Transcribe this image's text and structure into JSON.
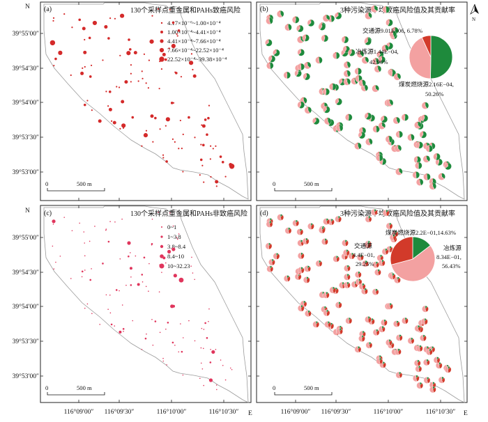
{
  "axes": {
    "lat_labels": [
      "39°55′00″",
      "39°54′30″",
      "39°54′00″",
      "39°53′30″",
      "39°53′00″"
    ],
    "lon_labels": [
      "116°09′00″",
      "116°09′30″",
      "116°10′00″",
      "116°10′30″"
    ],
    "north": "N",
    "east": "E",
    "scale_zero": "0",
    "scale_label": "500 m"
  },
  "panels": {
    "a": {
      "letter": "(a)",
      "title": "130个采样点重金属和PAHs致癌风险",
      "legend": [
        "4.17×10⁻⁶~1.00×10⁻⁴",
        "1.00×10⁻⁴~4.41×10⁻⁴",
        "4.41×10⁻⁴~7.66×10⁻⁴",
        "7.66×10⁻⁴~22.52×10⁻⁴",
        "22.52×10⁻⁴~39.38×10⁻⁴"
      ]
    },
    "b": {
      "letter": "(b)",
      "title": "3种污染源平均致癌风险值及其贡献率",
      "pie_labels": [
        "交通源9.01E−06, 6.78%",
        "冶炼源1.44E−04,",
        "42.96%",
        "煤炭燃烧源2.16E−04,",
        "50.26%"
      ],
      "pie": [
        {
          "name": "交通源",
          "value": 6.78
        },
        {
          "name": "冶炼源",
          "value": 42.96
        },
        {
          "name": "煤炭燃烧源",
          "value": 50.26
        }
      ]
    },
    "c": {
      "letter": "(c)",
      "title": "130个采样点重金属和PAHs非致癌风险",
      "legend": [
        "0~1",
        "1~3.8",
        "3.8~8.4",
        "8.4~10",
        "10~32.23"
      ]
    },
    "d": {
      "letter": "(d)",
      "title": "3种污染源平均致癌风险值及其贡献率",
      "pie_labels": [
        "煤炭燃烧源2.2E−01,14.63%",
        "交通源",
        "4.4E−01,",
        "29.25%",
        "冶炼源",
        "8.34E−01,",
        "56.43%"
      ],
      "pie": [
        {
          "name": "煤炭燃烧源",
          "value": 14.63
        },
        {
          "name": "交通源",
          "value": 29.25
        },
        {
          "name": "冶炼源",
          "value": 56.43
        }
      ]
    }
  },
  "colors": {
    "risk_dot": "#d42a2a",
    "noncancer_dot": "#e0355c",
    "coal": "#1e8a3c",
    "smelting": "#f3a1a1",
    "traffic": "#d23a2a",
    "boundary": "#9a9a9a"
  }
}
